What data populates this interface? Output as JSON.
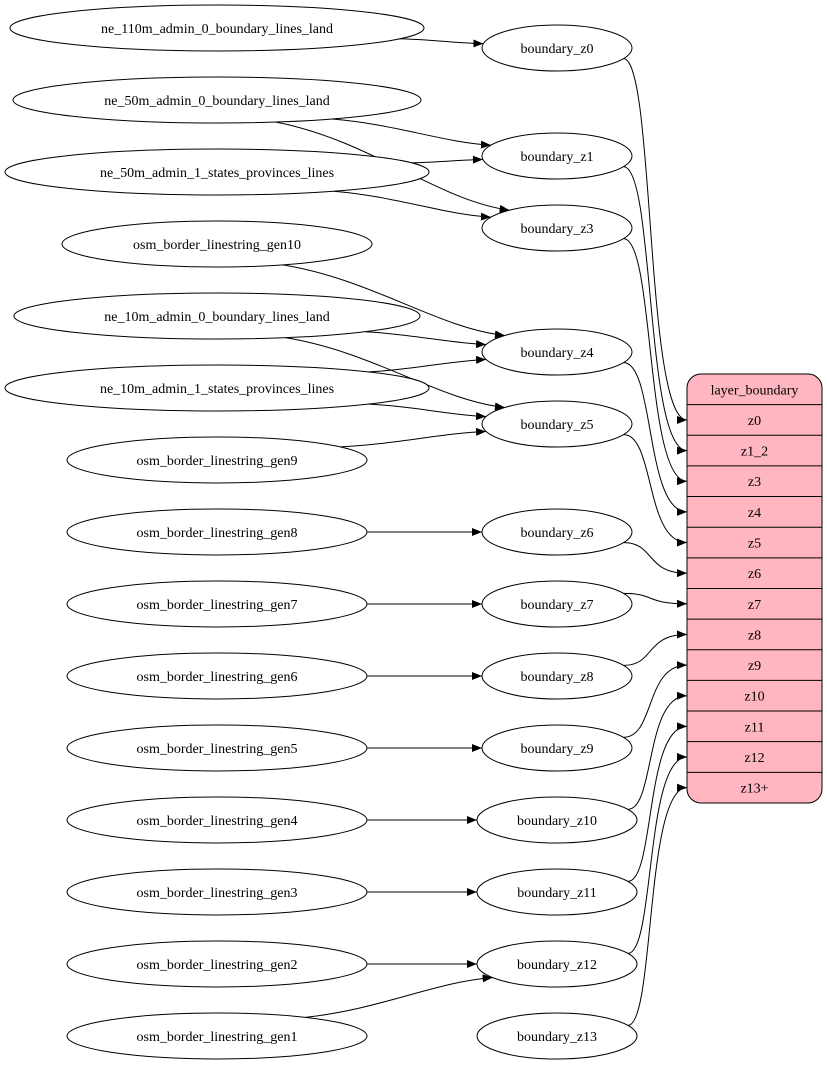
{
  "diagram": {
    "sources": [
      {
        "id": "ne110_0",
        "label": "ne_110m_admin_0_boundary_lines_land"
      },
      {
        "id": "ne50_0",
        "label": "ne_50m_admin_0_boundary_lines_land"
      },
      {
        "id": "ne50_1",
        "label": "ne_50m_admin_1_states_provinces_lines"
      },
      {
        "id": "gen10",
        "label": "osm_border_linestring_gen10"
      },
      {
        "id": "ne10_0",
        "label": "ne_10m_admin_0_boundary_lines_land"
      },
      {
        "id": "ne10_1",
        "label": "ne_10m_admin_1_states_provinces_lines"
      },
      {
        "id": "gen9",
        "label": "osm_border_linestring_gen9"
      },
      {
        "id": "gen8",
        "label": "osm_border_linestring_gen8"
      },
      {
        "id": "gen7",
        "label": "osm_border_linestring_gen7"
      },
      {
        "id": "gen6",
        "label": "osm_border_linestring_gen6"
      },
      {
        "id": "gen5",
        "label": "osm_border_linestring_gen5"
      },
      {
        "id": "gen4",
        "label": "osm_border_linestring_gen4"
      },
      {
        "id": "gen3",
        "label": "osm_border_linestring_gen3"
      },
      {
        "id": "gen2",
        "label": "osm_border_linestring_gen2"
      },
      {
        "id": "gen1",
        "label": "osm_border_linestring_gen1"
      }
    ],
    "middle": [
      {
        "id": "bz0",
        "label": "boundary_z0"
      },
      {
        "id": "bz1",
        "label": "boundary_z1"
      },
      {
        "id": "bz3",
        "label": "boundary_z3"
      },
      {
        "id": "bz4",
        "label": "boundary_z4"
      },
      {
        "id": "bz5",
        "label": "boundary_z5"
      },
      {
        "id": "bz6",
        "label": "boundary_z6"
      },
      {
        "id": "bz7",
        "label": "boundary_z7"
      },
      {
        "id": "bz8",
        "label": "boundary_z8"
      },
      {
        "id": "bz9",
        "label": "boundary_z9"
      },
      {
        "id": "bz10",
        "label": "boundary_z10"
      },
      {
        "id": "bz11",
        "label": "boundary_z11"
      },
      {
        "id": "bz12",
        "label": "boundary_z12"
      },
      {
        "id": "bz13",
        "label": "boundary_z13"
      }
    ],
    "record": {
      "title": "layer_boundary",
      "fill": "#ffb6c1",
      "ports": [
        {
          "id": "p0",
          "label": "z0"
        },
        {
          "id": "p1",
          "label": "z1_2"
        },
        {
          "id": "p3",
          "label": "z3"
        },
        {
          "id": "p4",
          "label": "z4"
        },
        {
          "id": "p5",
          "label": "z5"
        },
        {
          "id": "p6",
          "label": "z6"
        },
        {
          "id": "p7",
          "label": "z7"
        },
        {
          "id": "p8",
          "label": "z8"
        },
        {
          "id": "p9",
          "label": "z9"
        },
        {
          "id": "p10",
          "label": "z10"
        },
        {
          "id": "p11",
          "label": "z11"
        },
        {
          "id": "p12",
          "label": "z12"
        },
        {
          "id": "p13",
          "label": "z13+"
        }
      ]
    },
    "edges": [
      [
        "ne110_0",
        "bz0"
      ],
      [
        "ne50_0",
        "bz1"
      ],
      [
        "ne50_0",
        "bz3"
      ],
      [
        "ne50_1",
        "bz1"
      ],
      [
        "ne50_1",
        "bz3"
      ],
      [
        "gen10",
        "bz4"
      ],
      [
        "ne10_0",
        "bz4"
      ],
      [
        "ne10_0",
        "bz5"
      ],
      [
        "ne10_1",
        "bz4"
      ],
      [
        "ne10_1",
        "bz5"
      ],
      [
        "gen9",
        "bz5"
      ],
      [
        "gen8",
        "bz6"
      ],
      [
        "gen7",
        "bz7"
      ],
      [
        "gen6",
        "bz8"
      ],
      [
        "gen5",
        "bz9"
      ],
      [
        "gen4",
        "bz10"
      ],
      [
        "gen3",
        "bz11"
      ],
      [
        "gen2",
        "bz12"
      ],
      [
        "gen1",
        "bz12"
      ],
      [
        "bz0",
        "p0"
      ],
      [
        "bz1",
        "p1"
      ],
      [
        "bz3",
        "p3"
      ],
      [
        "bz4",
        "p4"
      ],
      [
        "bz5",
        "p5"
      ],
      [
        "bz6",
        "p6"
      ],
      [
        "bz7",
        "p7"
      ],
      [
        "bz8",
        "p8"
      ],
      [
        "bz9",
        "p9"
      ],
      [
        "bz10",
        "p10"
      ],
      [
        "bz11",
        "p11"
      ],
      [
        "bz12",
        "p12"
      ],
      [
        "bz13",
        "p13"
      ]
    ]
  }
}
